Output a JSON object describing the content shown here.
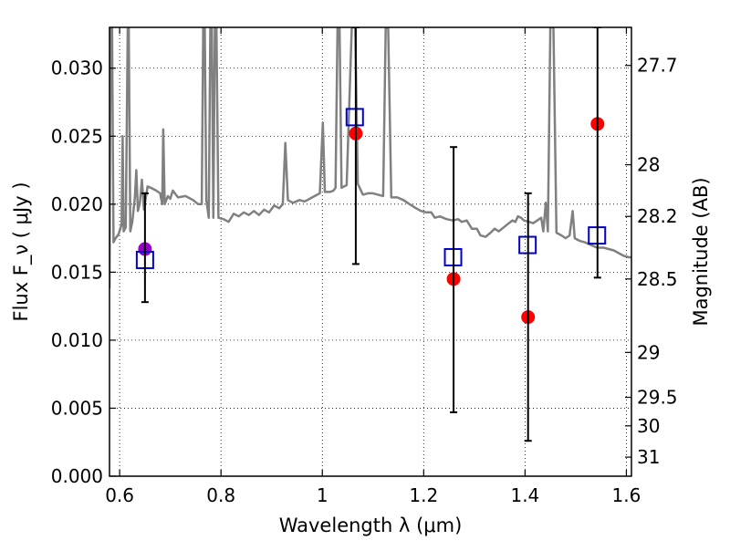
{
  "chart_data": {
    "type": "scatter",
    "xlabel": "Wavelength  λ (μm)",
    "ylabel": "Flux  F_ν  ( μJy )",
    "ylabel_right": "Magnitude (AB)",
    "xlim": [
      0.58,
      1.61
    ],
    "ylim": [
      0.0,
      0.033
    ],
    "grid": true,
    "x_ticks": [
      {
        "value": 0.6,
        "label": "0.6"
      },
      {
        "value": 0.8,
        "label": "0.8"
      },
      {
        "value": 1.0,
        "label": "1"
      },
      {
        "value": 1.2,
        "label": "1.2"
      },
      {
        "value": 1.4,
        "label": "1.4"
      },
      {
        "value": 1.6,
        "label": "1.6"
      }
    ],
    "y_ticks": [
      {
        "value": 0.0,
        "label": "0.000"
      },
      {
        "value": 0.005,
        "label": "0.005"
      },
      {
        "value": 0.01,
        "label": "0.010"
      },
      {
        "value": 0.015,
        "label": "0.015"
      },
      {
        "value": 0.02,
        "label": "0.020"
      },
      {
        "value": 0.025,
        "label": "0.025"
      },
      {
        "value": 0.03,
        "label": "0.030"
      }
    ],
    "right_ticks": [
      {
        "flux": 0.0302,
        "label": "27.7"
      },
      {
        "flux": 0.0229,
        "label": "28"
      },
      {
        "flux": 0.0191,
        "label": "28.2"
      },
      {
        "flux": 0.0145,
        "label": "28.5"
      },
      {
        "flux": 0.0091,
        "label": "29"
      },
      {
        "flux": 0.0058,
        "label": "29.5"
      },
      {
        "flux": 0.0037,
        "label": "30"
      },
      {
        "flux": 0.0014,
        "label": "31"
      }
    ],
    "series": [
      {
        "kind": "line",
        "color": "#808080",
        "points": [
          [
            0.58,
            0.0138
          ],
          [
            0.582,
            0.033
          ],
          [
            0.585,
            0.033
          ],
          [
            0.588,
            0.0172
          ],
          [
            0.592,
            0.0175
          ],
          [
            0.598,
            0.0178
          ],
          [
            0.604,
            0.0185
          ],
          [
            0.606,
            0.025
          ],
          [
            0.608,
            0.018
          ],
          [
            0.612,
            0.0183
          ],
          [
            0.616,
            0.033
          ],
          [
            0.618,
            0.033
          ],
          [
            0.621,
            0.018
          ],
          [
            0.625,
            0.0187
          ],
          [
            0.63,
            0.0205
          ],
          [
            0.633,
            0.0225
          ],
          [
            0.636,
            0.0195
          ],
          [
            0.64,
            0.0201
          ],
          [
            0.644,
            0.0218
          ],
          [
            0.648,
            0.0196
          ],
          [
            0.655,
            0.0213
          ],
          [
            0.662,
            0.0212
          ],
          [
            0.672,
            0.021
          ],
          [
            0.68,
            0.0208
          ],
          [
            0.684,
            0.02
          ],
          [
            0.686,
            0.0255
          ],
          [
            0.689,
            0.02
          ],
          [
            0.695,
            0.0206
          ],
          [
            0.7,
            0.0204
          ],
          [
            0.705,
            0.021
          ],
          [
            0.715,
            0.0205
          ],
          [
            0.73,
            0.0206
          ],
          [
            0.745,
            0.0203
          ],
          [
            0.755,
            0.02
          ],
          [
            0.762,
            0.02
          ],
          [
            0.765,
            0.033
          ],
          [
            0.768,
            0.033
          ],
          [
            0.771,
            0.0203
          ],
          [
            0.776,
            0.019
          ],
          [
            0.779,
            0.033
          ],
          [
            0.782,
            0.033
          ],
          [
            0.785,
            0.019
          ],
          [
            0.788,
            0.033
          ],
          [
            0.791,
            0.033
          ],
          [
            0.795,
            0.019
          ],
          [
            0.805,
            0.0189
          ],
          [
            0.815,
            0.0187
          ],
          [
            0.825,
            0.0193
          ],
          [
            0.835,
            0.0191
          ],
          [
            0.845,
            0.0194
          ],
          [
            0.855,
            0.0192
          ],
          [
            0.865,
            0.0195
          ],
          [
            0.875,
            0.0192
          ],
          [
            0.885,
            0.0196
          ],
          [
            0.895,
            0.0194
          ],
          [
            0.905,
            0.0199
          ],
          [
            0.915,
            0.0197
          ],
          [
            0.922,
            0.02
          ],
          [
            0.927,
            0.0245
          ],
          [
            0.932,
            0.0203
          ],
          [
            0.942,
            0.0201
          ],
          [
            0.955,
            0.0203
          ],
          [
            0.965,
            0.0202
          ],
          [
            0.975,
            0.0204
          ],
          [
            0.985,
            0.0206
          ],
          [
            0.995,
            0.0208
          ],
          [
            1.001,
            0.026
          ],
          [
            1.005,
            0.0209
          ],
          [
            1.015,
            0.0209
          ],
          [
            1.022,
            0.021
          ],
          [
            1.026,
            0.0212
          ],
          [
            1.03,
            0.033
          ],
          [
            1.034,
            0.033
          ],
          [
            1.038,
            0.0212
          ],
          [
            1.048,
            0.0214
          ],
          [
            1.058,
            0.033
          ],
          [
            1.065,
            0.033
          ],
          [
            1.07,
            0.0215
          ],
          [
            1.08,
            0.0207
          ],
          [
            1.09,
            0.0208
          ],
          [
            1.1,
            0.0208
          ],
          [
            1.11,
            0.0207
          ],
          [
            1.12,
            0.0206
          ],
          [
            1.125,
            0.033
          ],
          [
            1.13,
            0.033
          ],
          [
            1.136,
            0.0205
          ],
          [
            1.148,
            0.0205
          ],
          [
            1.16,
            0.0203
          ],
          [
            1.172,
            0.02
          ],
          [
            1.185,
            0.0197
          ],
          [
            1.195,
            0.0195
          ],
          [
            1.205,
            0.0194
          ],
          [
            1.215,
            0.0194
          ],
          [
            1.222,
            0.019
          ],
          [
            1.232,
            0.0191
          ],
          [
            1.245,
            0.0189
          ],
          [
            1.258,
            0.0188
          ],
          [
            1.268,
            0.0189
          ],
          [
            1.275,
            0.0187
          ],
          [
            1.285,
            0.0188
          ],
          [
            1.295,
            0.0182
          ],
          [
            1.305,
            0.0182
          ],
          [
            1.312,
            0.0177
          ],
          [
            1.322,
            0.0176
          ],
          [
            1.332,
            0.0179
          ],
          [
            1.34,
            0.0182
          ],
          [
            1.348,
            0.018
          ],
          [
            1.358,
            0.0183
          ],
          [
            1.368,
            0.0186
          ],
          [
            1.375,
            0.0188
          ],
          [
            1.381,
            0.0187
          ],
          [
            1.386,
            0.0191
          ],
          [
            1.392,
            0.019
          ],
          [
            1.398,
            0.0188
          ],
          [
            1.408,
            0.0187
          ],
          [
            1.416,
            0.0186
          ],
          [
            1.424,
            0.0188
          ],
          [
            1.432,
            0.019
          ],
          [
            1.436,
            0.018
          ],
          [
            1.441,
            0.0201
          ],
          [
            1.445,
            0.018
          ],
          [
            1.45,
            0.033
          ],
          [
            1.456,
            0.033
          ],
          [
            1.462,
            0.0179
          ],
          [
            1.472,
            0.0177
          ],
          [
            1.48,
            0.0175
          ],
          [
            1.488,
            0.0177
          ],
          [
            1.494,
            0.0195
          ],
          [
            1.498,
            0.0175
          ],
          [
            1.508,
            0.0173
          ],
          [
            1.518,
            0.0172
          ],
          [
            1.53,
            0.017
          ],
          [
            1.542,
            0.0168
          ],
          [
            1.555,
            0.0168
          ],
          [
            1.565,
            0.0167
          ],
          [
            1.575,
            0.0166
          ],
          [
            1.585,
            0.0164
          ],
          [
            1.595,
            0.0162
          ],
          [
            1.605,
            0.0161
          ],
          [
            1.61,
            0.0161
          ]
        ]
      },
      {
        "kind": "points",
        "marker": "circle",
        "color": "#ff0000",
        "points": [
          {
            "x": 1.066,
            "y": 0.0252
          },
          {
            "x": 1.259,
            "y": 0.0145
          },
          {
            "x": 1.406,
            "y": 0.0117
          },
          {
            "x": 1.543,
            "y": 0.0259
          }
        ]
      },
      {
        "kind": "points",
        "marker": "circle",
        "color": "#9900cc",
        "points": [
          {
            "x": 0.65,
            "y": 0.0167
          }
        ]
      },
      {
        "kind": "points",
        "marker": "square-open",
        "color": "#0000cc",
        "points": [
          {
            "x": 0.65,
            "y": 0.0159
          },
          {
            "x": 1.064,
            "y": 0.0264
          },
          {
            "x": 1.258,
            "y": 0.0161
          },
          {
            "x": 1.405,
            "y": 0.017
          },
          {
            "x": 1.542,
            "y": 0.0177
          }
        ]
      },
      {
        "kind": "errorbars",
        "color": "#000000",
        "points": [
          {
            "x": 0.65,
            "low": 0.0128,
            "high": 0.0208
          },
          {
            "x": 1.066,
            "low": 0.0156,
            "high": 0.033
          },
          {
            "x": 1.259,
            "low": 0.0047,
            "high": 0.0242
          },
          {
            "x": 1.406,
            "low": 0.0026,
            "high": 0.0208
          },
          {
            "x": 1.543,
            "low": 0.0146,
            "high": 0.033
          }
        ]
      }
    ]
  }
}
